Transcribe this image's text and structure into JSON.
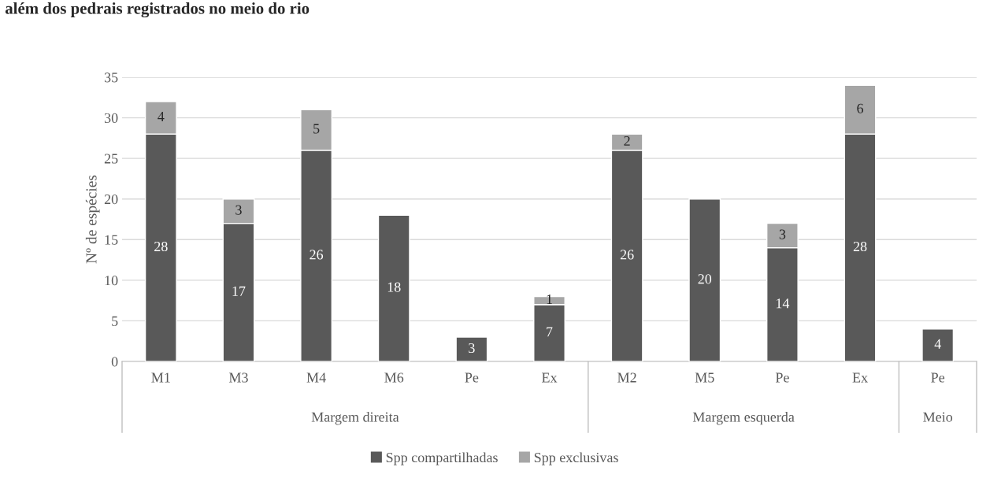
{
  "chart_data": {
    "type": "bar",
    "title": "além dos pedrais registrados no meio do rio",
    "ylabel": "Nº de espécies",
    "categories": [
      "M1",
      "M3",
      "M4",
      "M6",
      "Pe",
      "Ex",
      "M2",
      "M5",
      "Pe",
      "Ex",
      "Pe"
    ],
    "series": [
      {
        "name": "Spp compartilhadas",
        "color": "#595959",
        "values": [
          28,
          17,
          26,
          18,
          3,
          7,
          26,
          20,
          14,
          28,
          4
        ]
      },
      {
        "name": "Spp exclusivas",
        "color": "#a6a6a6",
        "values": [
          4,
          3,
          5,
          null,
          null,
          1,
          2,
          null,
          3,
          6,
          null
        ]
      }
    ],
    "stacked": true,
    "data_labels": true,
    "ylim": [
      0,
      35
    ],
    "yticks": [
      0,
      5,
      10,
      15,
      20,
      25,
      30,
      35
    ],
    "grid": "y",
    "legend": "bottom",
    "annotations": [
      "Margem direita",
      "Margem esquerda",
      "Meio"
    ]
  }
}
